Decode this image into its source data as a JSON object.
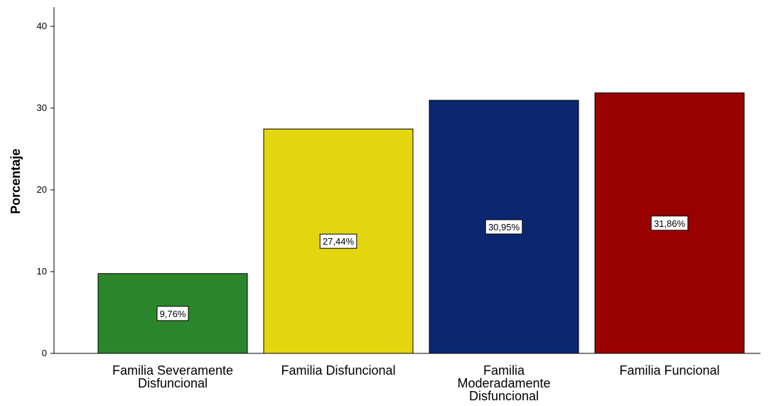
{
  "chart_data": {
    "type": "bar",
    "title": "",
    "xlabel": "",
    "ylabel": "Porcentaje",
    "ylim": [
      0,
      42
    ],
    "yticks": [
      0,
      10,
      20,
      30,
      40
    ],
    "categories": [
      [
        "Familia Severamente",
        "Disfuncional"
      ],
      [
        "Familia Disfuncional"
      ],
      [
        "Familia",
        "Moderadamente",
        "Disfuncional"
      ],
      [
        "Familia Funcional"
      ]
    ],
    "values": [
      9.76,
      27.44,
      30.95,
      31.86
    ],
    "data_labels": [
      "9,76%",
      "27,44%",
      "30,95%",
      "31,86%"
    ],
    "colors": [
      "#2b862b",
      "#e3d60f",
      "#0b2770",
      "#990000"
    ],
    "grid": false,
    "legend": "none"
  }
}
